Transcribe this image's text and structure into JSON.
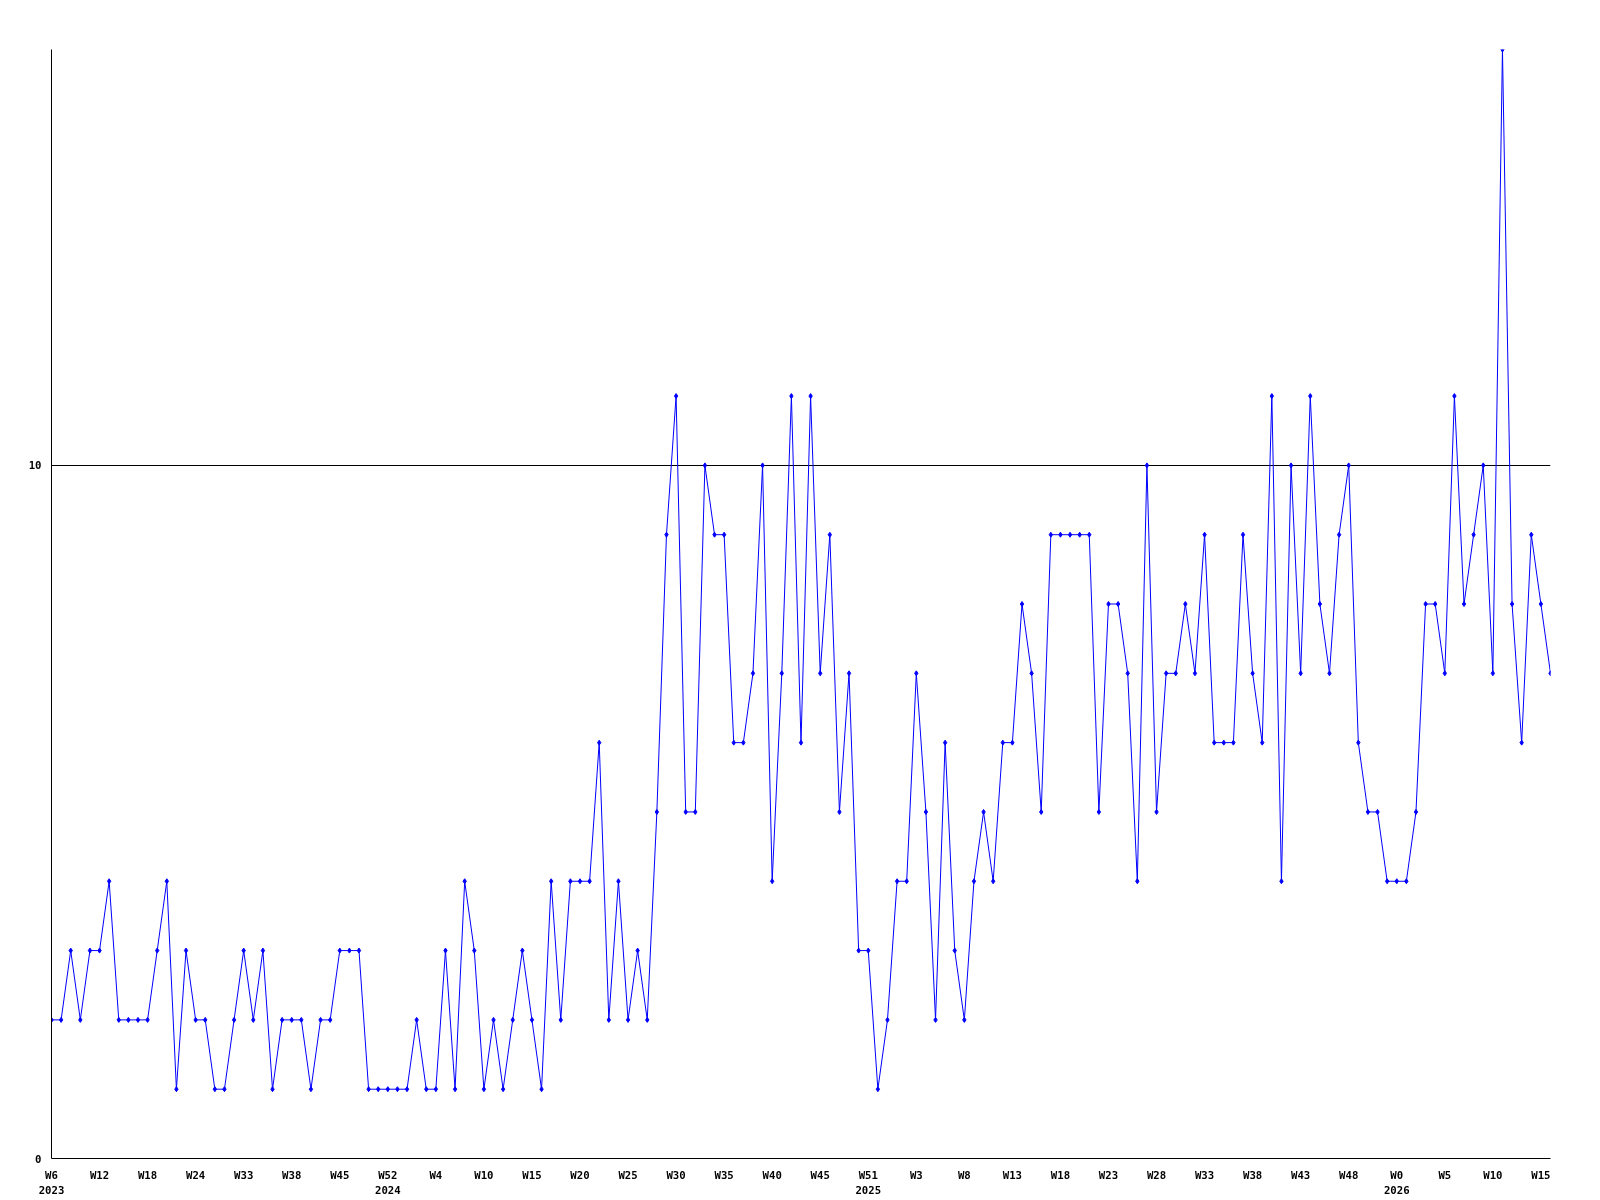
{
  "chart_data": {
    "type": "line",
    "categories": [
      "W6\n2023",
      null,
      null,
      null,
      null,
      "W12",
      null,
      null,
      null,
      null,
      "W18",
      null,
      null,
      null,
      null,
      "W24",
      null,
      null,
      null,
      null,
      "W33",
      null,
      null,
      null,
      null,
      "W38",
      null,
      null,
      null,
      null,
      "W45",
      null,
      null,
      null,
      null,
      "W52\n2024",
      null,
      null,
      null,
      null,
      "W4",
      null,
      null,
      null,
      null,
      "W10",
      null,
      null,
      null,
      null,
      "W15",
      null,
      null,
      null,
      null,
      "W20",
      null,
      null,
      null,
      null,
      "W25",
      null,
      null,
      null,
      null,
      "W30",
      null,
      null,
      null,
      null,
      "W35",
      null,
      null,
      null,
      null,
      "W40",
      null,
      null,
      null,
      null,
      "W45",
      null,
      null,
      null,
      null,
      "W51\n2025",
      null,
      null,
      null,
      null,
      "W3",
      null,
      null,
      null,
      null,
      "W8",
      null,
      null,
      null,
      null,
      "W13",
      null,
      null,
      null,
      null,
      "W18",
      null,
      null,
      null,
      null,
      "W23",
      null,
      null,
      null,
      null,
      "W28",
      null,
      null,
      null,
      null,
      "W33",
      null,
      null,
      null,
      null,
      "W38",
      null,
      null,
      null,
      null,
      "W43",
      null,
      null,
      null,
      null,
      "W48",
      null,
      null,
      null,
      null,
      "W0\n2026",
      null,
      null,
      null,
      null,
      "W5",
      null,
      null,
      null,
      null,
      "W10",
      null,
      null,
      null,
      null,
      "W15",
      null
    ],
    "series": [
      {
        "color": "#0000ff",
        "values": [
          2,
          2,
          3,
          2,
          3,
          3,
          4,
          2,
          2,
          2,
          2,
          3,
          4,
          1,
          3,
          2,
          2,
          1,
          1,
          2,
          3,
          2,
          3,
          1,
          2,
          2,
          2,
          1,
          2,
          2,
          3,
          3,
          3,
          1,
          1,
          1,
          1,
          1,
          2,
          1,
          1,
          3,
          1,
          4,
          3,
          1,
          2,
          1,
          2,
          3,
          2,
          1,
          4,
          2,
          4,
          4,
          4,
          6,
          2,
          4,
          2,
          3,
          2,
          5,
          9,
          11,
          5,
          5,
          10,
          9,
          9,
          6,
          6,
          7,
          10,
          4,
          7,
          11,
          6,
          11,
          7,
          9,
          5,
          7,
          3,
          3,
          1,
          2,
          4,
          4,
          7,
          5,
          2,
          6,
          3,
          2,
          4,
          5,
          4,
          6,
          6,
          8,
          7,
          5,
          9,
          9,
          9,
          9,
          9,
          5,
          8,
          8,
          7,
          4,
          10,
          5,
          7,
          7,
          8,
          7,
          9,
          6,
          6,
          6,
          9,
          7,
          6,
          11,
          4,
          10,
          7,
          11,
          8,
          7,
          9,
          10,
          6,
          5,
          5,
          4,
          4,
          4,
          5,
          8,
          8,
          7,
          11,
          8,
          9,
          10,
          7,
          16,
          8,
          6,
          9,
          8,
          7
        ]
      }
    ],
    "ylim": [
      0,
      16
    ],
    "yticks": [
      0,
      10
    ],
    "grid": "y",
    "marker": "diamond",
    "line_style": "solid"
  }
}
